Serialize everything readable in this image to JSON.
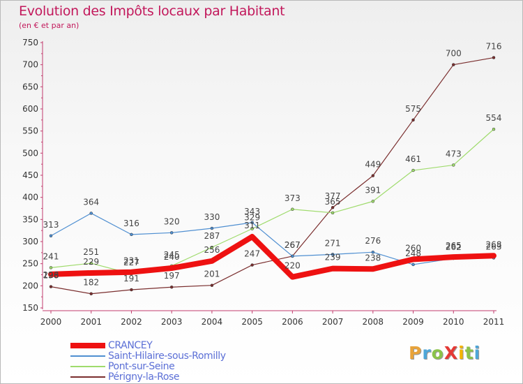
{
  "title": "Evolution des Impôts locaux par Habitant",
  "subtitle": "(en € et par an)",
  "logo": {
    "text": "ProXiti",
    "letters": [
      {
        "ch": "P",
        "color": "#e8a33a"
      },
      {
        "ch": "r",
        "color": "#4ea6d8"
      },
      {
        "ch": "o",
        "color": "#8bc34a"
      },
      {
        "ch": "X",
        "color": "#e53935"
      },
      {
        "ch": "i",
        "color": "#f4b400"
      },
      {
        "ch": "t",
        "color": "#8bc34a"
      },
      {
        "ch": "i",
        "color": "#4ea6d8"
      }
    ]
  },
  "chart_data": {
    "type": "line",
    "x": [
      "2000",
      "2001",
      "2002",
      "2003",
      "2004",
      "2005",
      "2006",
      "2007",
      "2008",
      "2009",
      "2010",
      "2011"
    ],
    "ylim": [
      150,
      750
    ],
    "yticks": [
      150,
      200,
      250,
      300,
      350,
      400,
      450,
      500,
      550,
      600,
      650,
      700,
      750
    ],
    "grid": false,
    "legend_position": "bottom-left",
    "series": [
      {
        "name": "CRANCEY",
        "color": "#ee1111",
        "width": 8,
        "marker": 7,
        "values": [
          226,
          229,
          231,
          240,
          256,
          311,
          220,
          239,
          238,
          260,
          265,
          268
        ]
      },
      {
        "name": "Saint-Hilaire-sous-Romilly",
        "color": "#4f8fd1",
        "width": 1.2,
        "marker": 3,
        "values": [
          313,
          364,
          316,
          320,
          330,
          343,
          267,
          271,
          276,
          248,
          262,
          263
        ]
      },
      {
        "name": "Pont-sur-Seine",
        "color": "#9fdb6c",
        "width": 1.2,
        "marker": 3,
        "values": [
          241,
          251,
          227,
          245,
          287,
          329,
          373,
          365,
          391,
          461,
          473,
          554
        ]
      },
      {
        "name": "Périgny-la-Rose",
        "color": "#7a2e2e",
        "width": 1.2,
        "marker": 3,
        "values": [
          198,
          182,
          191,
          197,
          201,
          247,
          267,
          377,
          449,
          575,
          700,
          716
        ]
      }
    ],
    "data_labels": [
      {
        "x": "2000",
        "text": "226",
        "value": 226,
        "dy": 5
      },
      {
        "x": "2001",
        "text": "229",
        "value": 229,
        "dy": -12
      },
      {
        "x": "2002",
        "text": "231",
        "value": 231,
        "dy": -12
      },
      {
        "x": "2003",
        "text": "240",
        "value": 240,
        "dy": -12
      },
      {
        "x": "2004",
        "text": "256",
        "value": 256,
        "dy": -12
      },
      {
        "x": "2005",
        "text": "311",
        "value": 311,
        "dy": -12
      },
      {
        "x": "2006",
        "text": "220",
        "value": 220,
        "dy": -12
      },
      {
        "x": "2007",
        "text": "239",
        "value": 239,
        "dy": -12
      },
      {
        "x": "2008",
        "text": "238",
        "value": 238,
        "dy": -12
      },
      {
        "x": "2009",
        "text": "260",
        "value": 260,
        "dy": -12
      },
      {
        "x": "2010",
        "text": "265",
        "value": 265,
        "dy": -12
      },
      {
        "x": "2011",
        "text": "268",
        "value": 268,
        "dy": -12
      },
      {
        "x": "2000",
        "text": "313",
        "value": 313,
        "dy": -12
      },
      {
        "x": "2001",
        "text": "364",
        "value": 364,
        "dy": -12
      },
      {
        "x": "2002",
        "text": "316",
        "value": 316,
        "dy": -12
      },
      {
        "x": "2003",
        "text": "320",
        "value": 320,
        "dy": -12
      },
      {
        "x": "2004",
        "text": "330",
        "value": 330,
        "dy": -12
      },
      {
        "x": "2005",
        "text": "343",
        "value": 343,
        "dy": -12
      },
      {
        "x": "2006",
        "text": "267",
        "value": 267,
        "dy": -12
      },
      {
        "x": "2007",
        "text": "271",
        "value": 271,
        "dy": -12
      },
      {
        "x": "2008",
        "text": "276",
        "value": 276,
        "dy": -12
      },
      {
        "x": "2009",
        "text": "248",
        "value": 248,
        "dy": -12
      },
      {
        "x": "2010",
        "text": "262",
        "value": 262,
        "dy": -12
      },
      {
        "x": "2011",
        "text": "263",
        "value": 263,
        "dy": -12
      },
      {
        "x": "2000",
        "text": "241",
        "value": 241,
        "dy": -12
      },
      {
        "x": "2001",
        "text": "251",
        "value": 251,
        "dy": -12
      },
      {
        "x": "2002",
        "text": "227",
        "value": 227,
        "dy": -12
      },
      {
        "x": "2003",
        "text": "245",
        "value": 245,
        "dy": -12
      },
      {
        "x": "2004",
        "text": "287",
        "value": 287,
        "dy": -12
      },
      {
        "x": "2005",
        "text": "329",
        "value": 329,
        "dy": -12
      },
      {
        "x": "2006",
        "text": "373",
        "value": 373,
        "dy": -12
      },
      {
        "x": "2007",
        "text": "365",
        "value": 365,
        "dy": -12
      },
      {
        "x": "2008",
        "text": "391",
        "value": 391,
        "dy": -12
      },
      {
        "x": "2009",
        "text": "461",
        "value": 461,
        "dy": -12
      },
      {
        "x": "2010",
        "text": "473",
        "value": 473,
        "dy": -12
      },
      {
        "x": "2011",
        "text": "554",
        "value": 554,
        "dy": -12
      },
      {
        "x": "2000",
        "text": "198",
        "value": 198,
        "dy": -12
      },
      {
        "x": "2001",
        "text": "182",
        "value": 182,
        "dy": -12
      },
      {
        "x": "2002",
        "text": "191",
        "value": 191,
        "dy": -12
      },
      {
        "x": "2003",
        "text": "197",
        "value": 197,
        "dy": -12
      },
      {
        "x": "2004",
        "text": "201",
        "value": 201,
        "dy": -12
      },
      {
        "x": "2005",
        "text": "247",
        "value": 247,
        "dy": -12
      },
      {
        "x": "2006",
        "text": "267",
        "value": 267,
        "dy": -12
      },
      {
        "x": "2007",
        "text": "377",
        "value": 377,
        "dy": -12
      },
      {
        "x": "2008",
        "text": "449",
        "value": 449,
        "dy": -12
      },
      {
        "x": "2009",
        "text": "575",
        "value": 575,
        "dy": -12
      },
      {
        "x": "2010",
        "text": "700",
        "value": 700,
        "dy": -12
      },
      {
        "x": "2011",
        "text": "716",
        "value": 716,
        "dy": -12
      }
    ]
  }
}
